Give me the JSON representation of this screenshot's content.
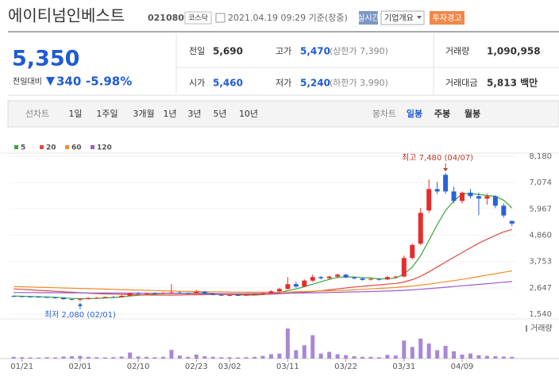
{
  "header": {
    "title": "에이티넘인베스트",
    "code": "021080",
    "market": "코스닥",
    "timestamp": "2021.04.19 09:29 기준(장중)",
    "buttons": [
      "실시간",
      "기업개요",
      "투자경고"
    ]
  },
  "quote": {
    "price": "5,350",
    "change_label": "전일대비",
    "change": "340",
    "change_rate": "-5.98%",
    "rows": [
      [
        {
          "label": "전일",
          "value": "5,690"
        },
        {
          "label": "고가",
          "value": "5,470",
          "note": "(상한가 7,390)"
        },
        {
          "label": "거래량",
          "value": "1,090,958"
        }
      ],
      [
        {
          "label": "시가",
          "value": "5,460"
        },
        {
          "label": "저가",
          "value": "5,240",
          "note": "(하한가 3,990)"
        },
        {
          "label": "거래대금",
          "value": "5,813 백만"
        }
      ]
    ]
  },
  "tabs": {
    "line": [
      "선차트",
      "1일",
      "1주일",
      "3개월",
      "1년",
      "3년",
      "5년",
      "10년"
    ],
    "candle": [
      "봉차트",
      "일봉",
      "주봉",
      "월봉"
    ]
  },
  "chart_data": {
    "type": "candlestick",
    "grid": true,
    "up_color": "#e62d2d",
    "down_color": "#2a62d6",
    "categories": [
      null,
      "01/21",
      null,
      null,
      null,
      null,
      null,
      null,
      "02/01",
      null,
      null,
      null,
      null,
      null,
      null,
      "02/10",
      null,
      null,
      null,
      null,
      null,
      null,
      "02/23",
      null,
      null,
      null,
      "03/02",
      null,
      null,
      null,
      null,
      null,
      null,
      "03/11",
      null,
      null,
      null,
      null,
      null,
      null,
      "03/22",
      null,
      null,
      null,
      null,
      null,
      null,
      "03/31",
      null,
      null,
      null,
      null,
      null,
      null,
      "04/09",
      null,
      null,
      null,
      null,
      null,
      null
    ],
    "open": [
      2300,
      2290,
      2280,
      2270,
      2260,
      2240,
      2230,
      2170,
      2150,
      2180,
      2220,
      2230,
      2260,
      2250,
      2310,
      2420,
      2400,
      2420,
      2410,
      2430,
      2450,
      2420,
      2400,
      2480,
      2400,
      2350,
      2320,
      2340,
      2330,
      2350,
      2380,
      2420,
      2500,
      2600,
      2800,
      2700,
      2950,
      3100,
      3050,
      3120,
      3200,
      3080,
      3040,
      3000,
      3020,
      3000,
      3100,
      3120,
      3900,
      4500,
      5900,
      6800,
      7400,
      6700,
      6300,
      6650,
      6500,
      6400,
      6500,
      6100,
      5460
    ],
    "high": [
      2330,
      2310,
      2300,
      2290,
      2280,
      2260,
      2250,
      2200,
      2200,
      2240,
      2260,
      2280,
      2300,
      2330,
      2450,
      2470,
      2440,
      2460,
      2450,
      2800,
      2490,
      2450,
      2560,
      2520,
      2430,
      2380,
      2360,
      2380,
      2370,
      2400,
      2450,
      2550,
      2650,
      3100,
      2900,
      3000,
      3200,
      3150,
      3150,
      3250,
      3230,
      3120,
      3080,
      3050,
      3060,
      3150,
      3150,
      4000,
      4500,
      6000,
      7200,
      7100,
      7480,
      6900,
      6700,
      6800,
      6650,
      6600,
      6550,
      6200,
      5470
    ],
    "low": [
      2270,
      2260,
      2250,
      2240,
      2220,
      2200,
      2150,
      2120,
      2080,
      2160,
      2190,
      2210,
      2230,
      2240,
      2300,
      2380,
      2370,
      2390,
      2380,
      2410,
      2400,
      2380,
      2390,
      2380,
      2330,
      2300,
      2290,
      2310,
      2300,
      2320,
      2350,
      2400,
      2450,
      2580,
      2650,
      2680,
      2900,
      3000,
      2980,
      3050,
      3050,
      3000,
      2950,
      2950,
      2950,
      2970,
      3050,
      3100,
      3850,
      4450,
      5800,
      6600,
      6600,
      6200,
      6200,
      6400,
      5700,
      6150,
      6000,
      5600,
      5240
    ],
    "close": [
      2290,
      2280,
      2270,
      2260,
      2240,
      2230,
      2170,
      2150,
      2180,
      2220,
      2230,
      2260,
      2250,
      2310,
      2420,
      2400,
      2420,
      2410,
      2430,
      2450,
      2420,
      2400,
      2480,
      2400,
      2350,
      2320,
      2340,
      2330,
      2350,
      2380,
      2420,
      2500,
      2600,
      2800,
      2700,
      2950,
      3100,
      3050,
      3120,
      3200,
      3080,
      3040,
      2980,
      3020,
      2990,
      3100,
      3120,
      3900,
      4450,
      5800,
      6800,
      6700,
      6700,
      6300,
      6650,
      6500,
      6400,
      6500,
      6100,
      5690,
      5350
    ],
    "series": [
      {
        "name": "5",
        "color": "#3aa53a",
        "values": [
          2300,
          2290,
          2285,
          2275,
          2265,
          2250,
          2230,
          2200,
          2190,
          2190,
          2200,
          2220,
          2240,
          2260,
          2300,
          2330,
          2360,
          2380,
          2410,
          2420,
          2420,
          2420,
          2430,
          2430,
          2410,
          2390,
          2380,
          2350,
          2340,
          2340,
          2360,
          2400,
          2450,
          2530,
          2600,
          2690,
          2800,
          2900,
          3000,
          3080,
          3110,
          3100,
          3080,
          3060,
          3020,
          3030,
          3050,
          3230,
          3520,
          4000,
          4640,
          5300,
          5900,
          6300,
          6600,
          6610,
          6580,
          6530,
          6490,
          6330,
          6000
        ]
      },
      {
        "name": "20",
        "color": "#e04b3f",
        "values": [
          2600,
          2580,
          2560,
          2540,
          2520,
          2500,
          2480,
          2460,
          2440,
          2420,
          2400,
          2390,
          2380,
          2370,
          2360,
          2350,
          2345,
          2340,
          2340,
          2340,
          2345,
          2350,
          2355,
          2360,
          2365,
          2370,
          2370,
          2370,
          2370,
          2370,
          2375,
          2380,
          2395,
          2420,
          2440,
          2460,
          2490,
          2520,
          2560,
          2600,
          2640,
          2680,
          2710,
          2740,
          2770,
          2800,
          2830,
          2890,
          2990,
          3130,
          3320,
          3520,
          3730,
          3930,
          4130,
          4330,
          4520,
          4690,
          4850,
          5000,
          5100
        ]
      },
      {
        "name": "60",
        "color": "#f08c28",
        "values": [
          2700,
          2690,
          2680,
          2670,
          2660,
          2650,
          2640,
          2630,
          2620,
          2610,
          2600,
          2590,
          2580,
          2570,
          2560,
          2550,
          2540,
          2530,
          2520,
          2510,
          2500,
          2495,
          2490,
          2485,
          2480,
          2475,
          2470,
          2465,
          2460,
          2460,
          2460,
          2460,
          2465,
          2470,
          2480,
          2490,
          2500,
          2510,
          2520,
          2530,
          2540,
          2560,
          2580,
          2600,
          2620,
          2640,
          2660,
          2690,
          2720,
          2760,
          2800,
          2850,
          2900,
          2950,
          3000,
          3060,
          3120,
          3180,
          3240,
          3300,
          3360
        ]
      },
      {
        "name": "120",
        "color": "#9a5ccf",
        "values": [
          2450,
          2448,
          2446,
          2444,
          2442,
          2440,
          2438,
          2436,
          2434,
          2432,
          2430,
          2428,
          2426,
          2424,
          2422,
          2420,
          2418,
          2416,
          2414,
          2412,
          2410,
          2408,
          2406,
          2404,
          2402,
          2400,
          2400,
          2400,
          2402,
          2404,
          2406,
          2410,
          2414,
          2418,
          2424,
          2430,
          2436,
          2442,
          2450,
          2458,
          2466,
          2474,
          2482,
          2492,
          2502,
          2512,
          2524,
          2540,
          2560,
          2585,
          2610,
          2640,
          2670,
          2700,
          2730,
          2760,
          2790,
          2820,
          2850,
          2880,
          2910
        ]
      }
    ],
    "ylim": [
      1540,
      8180
    ],
    "yticks": [
      {
        "value": 8180,
        "label": "8,180"
      },
      {
        "value": 7074,
        "label": "7,074"
      },
      {
        "value": 5967,
        "label": "5,967"
      },
      {
        "value": 4860,
        "label": "4,860"
      },
      {
        "value": 3753,
        "label": "3,753"
      },
      {
        "value": 2647,
        "label": "2,647"
      },
      {
        "value": 1540,
        "label": "1,540"
      }
    ],
    "volume": {
      "name": "거래량",
      "color": "#a887d6",
      "ylim": [
        0,
        10000000
      ],
      "values": [
        500000,
        400000,
        350000,
        300000,
        400000,
        350000,
        600000,
        700000,
        800000,
        500000,
        400000,
        350000,
        400000,
        600000,
        1800000,
        600000,
        500000,
        400000,
        500000,
        2600000,
        900000,
        500000,
        1200000,
        700000,
        500000,
        400000,
        400000,
        350000,
        400000,
        500000,
        800000,
        1300000,
        1500000,
        9000000,
        2500000,
        4000000,
        7000000,
        1500000,
        2000000,
        1300000,
        1000000,
        700000,
        500000,
        500000,
        400000,
        1100000,
        900000,
        5400000,
        3500000,
        6000000,
        4500000,
        2500000,
        3800000,
        2200000,
        1200000,
        1500000,
        1000000,
        800000,
        700000,
        600000,
        500000
      ]
    },
    "annotations": {
      "max": "최고 7,480 (04/07)",
      "min": "최저 2,080 (02/01)"
    }
  }
}
